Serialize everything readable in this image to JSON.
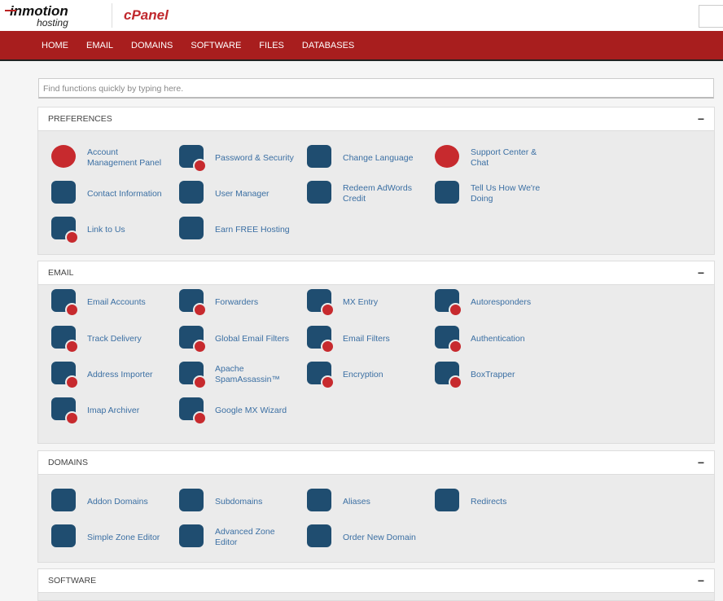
{
  "header": {
    "brand": "inmotion",
    "brand_sub": "hosting",
    "product": "cPanel"
  },
  "nav": [
    "HOME",
    "EMAIL",
    "DOMAINS",
    "SOFTWARE",
    "FILES",
    "DATABASES"
  ],
  "search": {
    "placeholder": "Find functions quickly by typing here."
  },
  "colors": {
    "nav": "#a81e1e",
    "icon_blue": "#1f4d70",
    "icon_red": "#c72a2e",
    "link": "#3b6fa3"
  },
  "sections": [
    {
      "title": "PREFERENCES",
      "toggle": "−",
      "items": [
        [
          "Account Management Panel",
          "Password & Security",
          "Change Language",
          "Support Center & Chat"
        ],
        [
          "Contact Information",
          "User Manager",
          "Redeem AdWords Credit",
          "Tell Us How We're Doing"
        ],
        [
          "Link to Us",
          "Earn FREE Hosting"
        ]
      ]
    },
    {
      "title": "EMAIL",
      "toggle": "−",
      "items": [
        [
          "Email Accounts",
          "Forwarders",
          "MX Entry",
          "Autoresponders"
        ],
        [
          "Track Delivery",
          "Global Email Filters",
          "Email Filters",
          "Authentication"
        ],
        [
          "Address Importer",
          "Apache SpamAssassin™",
          "Encryption",
          "BoxTrapper"
        ],
        [
          "Imap Archiver",
          "Google MX Wizard"
        ]
      ]
    },
    {
      "title": "DOMAINS",
      "toggle": "−",
      "items": [
        [
          "Addon Domains",
          "Subdomains",
          "Aliases",
          "Redirects"
        ],
        [
          "Simple Zone Editor",
          "Advanced Zone Editor",
          "Order New Domain"
        ]
      ]
    },
    {
      "title": "SOFTWARE",
      "toggle": "−",
      "items": []
    }
  ]
}
